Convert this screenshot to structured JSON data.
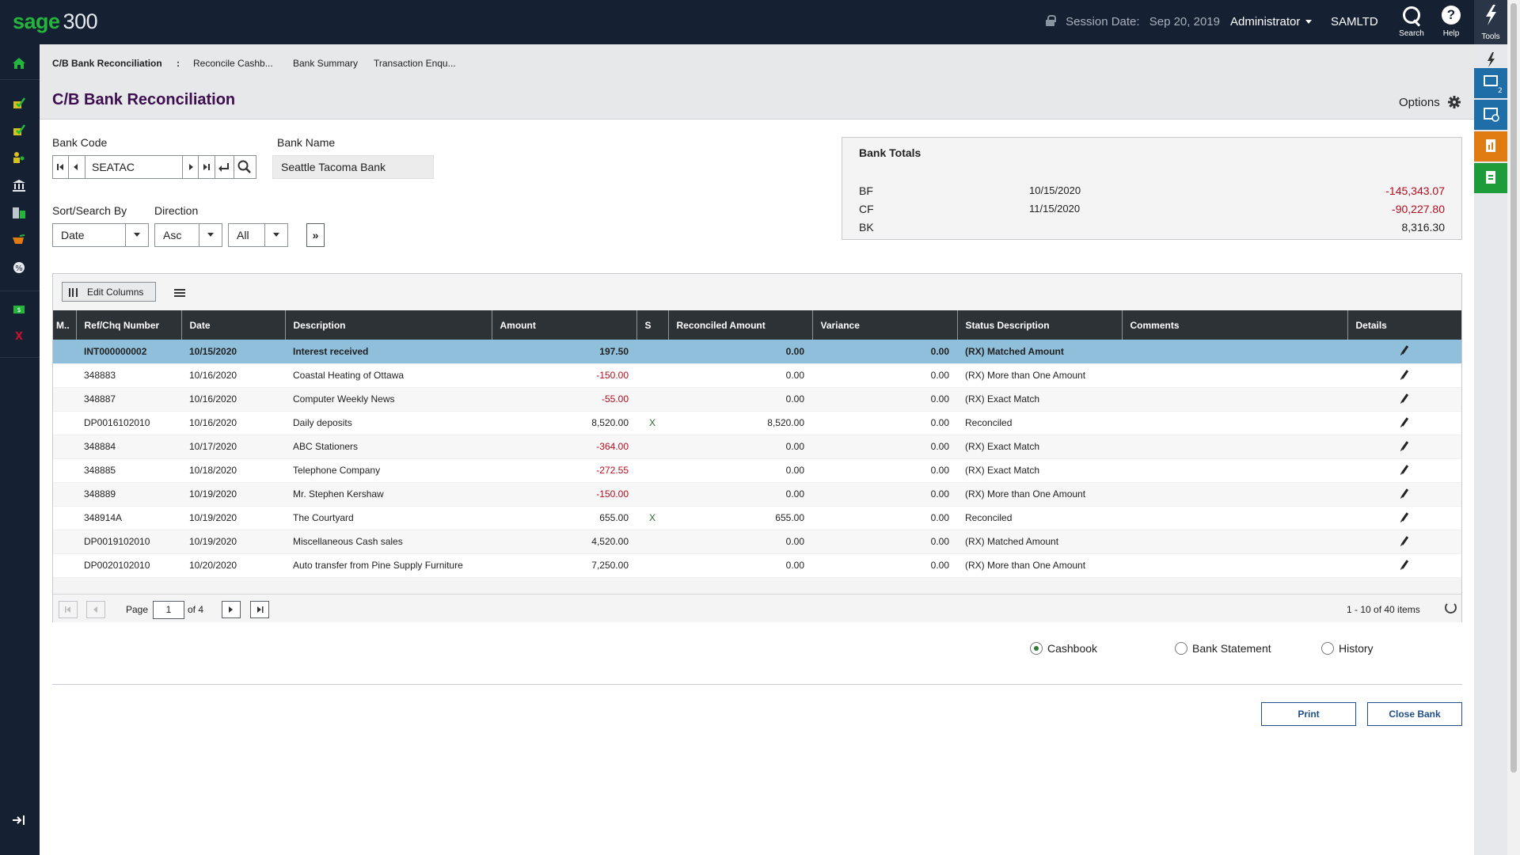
{
  "topbar": {
    "logo_sage": "sage",
    "logo_num": "300",
    "session_label": "Session Date:",
    "session_date": "Sep 20, 2019",
    "user": "Administrator",
    "company": "SAMLTD",
    "search_label": "Search",
    "help_label": "Help",
    "tools_label": "Tools"
  },
  "breadcrumb": {
    "items": [
      "C/B Bank Reconciliation",
      ":",
      "Reconcile Cashb...",
      "Bank Summary",
      "Transaction Enqu..."
    ]
  },
  "page": {
    "title": "C/B Bank Reconciliation",
    "options_label": "Options"
  },
  "form": {
    "bank_code_label": "Bank Code",
    "bank_code_value": "SEATAC",
    "bank_name_label": "Bank Name",
    "bank_name_value": "Seattle Tacoma Bank",
    "sort_label": "Sort/Search By",
    "sort_value": "Date",
    "direction_label": "Direction",
    "direction_value": "Asc",
    "filter_value": "All",
    "go_glyph": "»"
  },
  "bank_totals": {
    "title": "Bank Totals",
    "rows": [
      {
        "code": "BF",
        "date": "10/15/2020",
        "amount": "-145,343.07",
        "negative": true
      },
      {
        "code": "CF",
        "date": "11/15/2020",
        "amount": "-90,227.80",
        "negative": true
      },
      {
        "code": "BK",
        "date": "",
        "amount": "8,316.30",
        "negative": false
      }
    ]
  },
  "grid": {
    "edit_columns_label": "Edit Columns",
    "columns": [
      "M..",
      "Ref/Chq Number",
      "Date",
      "Description",
      "Amount",
      "S",
      "Reconciled Amount",
      "Variance",
      "Status Description",
      "Comments",
      "Details"
    ],
    "rows": [
      {
        "ref": "INT000000002",
        "date": "10/15/2020",
        "desc": "Interest received",
        "amount": "197.50",
        "neg": false,
        "s": "",
        "rec": "0.00",
        "var": "0.00",
        "status": "(RX) Matched Amount",
        "comments": ""
      },
      {
        "ref": "348883",
        "date": "10/16/2020",
        "desc": "Coastal Heating of Ottawa",
        "amount": "-150.00",
        "neg": true,
        "s": "",
        "rec": "0.00",
        "var": "0.00",
        "status": "(RX) More than One Amount",
        "comments": ""
      },
      {
        "ref": "348887",
        "date": "10/16/2020",
        "desc": "Computer Weekly News",
        "amount": "-55.00",
        "neg": true,
        "s": "",
        "rec": "0.00",
        "var": "0.00",
        "status": "(RX) Exact Match",
        "comments": ""
      },
      {
        "ref": "DP0016102010",
        "date": "10/16/2020",
        "desc": "Daily deposits",
        "amount": "8,520.00",
        "neg": false,
        "s": "X",
        "rec": "8,520.00",
        "var": "0.00",
        "status": "Reconciled",
        "comments": ""
      },
      {
        "ref": "348884",
        "date": "10/17/2020",
        "desc": "ABC Stationers",
        "amount": "-364.00",
        "neg": true,
        "s": "",
        "rec": "0.00",
        "var": "0.00",
        "status": "(RX) Exact Match",
        "comments": ""
      },
      {
        "ref": "348885",
        "date": "10/18/2020",
        "desc": "Telephone Company",
        "amount": "-272.55",
        "neg": true,
        "s": "",
        "rec": "0.00",
        "var": "0.00",
        "status": "(RX) Exact Match",
        "comments": ""
      },
      {
        "ref": "348889",
        "date": "10/19/2020",
        "desc": "Mr. Stephen Kershaw",
        "amount": "-150.00",
        "neg": true,
        "s": "",
        "rec": "0.00",
        "var": "0.00",
        "status": "(RX) More than One Amount",
        "comments": ""
      },
      {
        "ref": "348914A",
        "date": "10/19/2020",
        "desc": "The Courtyard",
        "amount": "655.00",
        "neg": false,
        "s": "X",
        "rec": "655.00",
        "var": "0.00",
        "status": "Reconciled",
        "comments": ""
      },
      {
        "ref": "DP0019102010",
        "date": "10/19/2020",
        "desc": "Miscellaneous Cash sales",
        "amount": "4,520.00",
        "neg": false,
        "s": "",
        "rec": "0.00",
        "var": "0.00",
        "status": "(RX) Matched Amount",
        "comments": ""
      },
      {
        "ref": "DP0020102010",
        "date": "10/20/2020",
        "desc": "Auto transfer from Pine Supply Furniture",
        "amount": "7,250.00",
        "neg": false,
        "s": "",
        "rec": "0.00",
        "var": "0.00",
        "status": "(RX) More than One Amount",
        "comments": ""
      }
    ],
    "pager": {
      "page_label": "Page",
      "page_value": "1",
      "of_label": "of 4",
      "items_label": "1 - 10 of 40 items"
    }
  },
  "view_options": [
    {
      "label": "Cashbook",
      "selected": true
    },
    {
      "label": "Bank Statement",
      "selected": false
    },
    {
      "label": "History",
      "selected": false
    }
  ],
  "buttons": {
    "print": "Print",
    "close_bank": "Close Bank"
  },
  "colors": {
    "topbar": "#152133",
    "brand_green": "#24b53c",
    "title_purple": "#3d0e4f",
    "negative_red": "#b40d1e",
    "selected_row": "#8fbfdb",
    "rail_blue": "#1f6ea8",
    "rail_orange": "#e07b12",
    "rail_green": "#1f9c3a"
  }
}
